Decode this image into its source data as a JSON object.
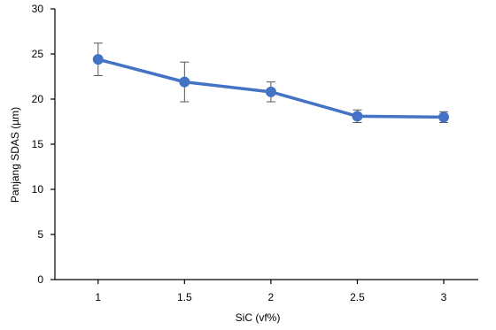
{
  "chart_data": {
    "type": "line",
    "title": "",
    "xlabel": "SiC (vf%)",
    "ylabel": "Panjang SDAS (µm)",
    "x": [
      1,
      1.5,
      2,
      2.5,
      3
    ],
    "x_tick_labels": [
      "1",
      "1.5",
      "2",
      "2.5",
      "3"
    ],
    "y_ticks": [
      0,
      5,
      10,
      15,
      20,
      25,
      30
    ],
    "y_tick_labels": [
      "0",
      "5",
      "10",
      "15",
      "20",
      "25",
      "30"
    ],
    "ylim": [
      0,
      30
    ],
    "xlim": [
      0.75,
      3.2
    ],
    "grid": false,
    "series": [
      {
        "values": [
          24.4,
          21.9,
          20.8,
          18.1,
          18.0
        ],
        "error": [
          1.8,
          2.2,
          1.1,
          0.7,
          0.6
        ],
        "color": "#4472C4"
      }
    ]
  }
}
